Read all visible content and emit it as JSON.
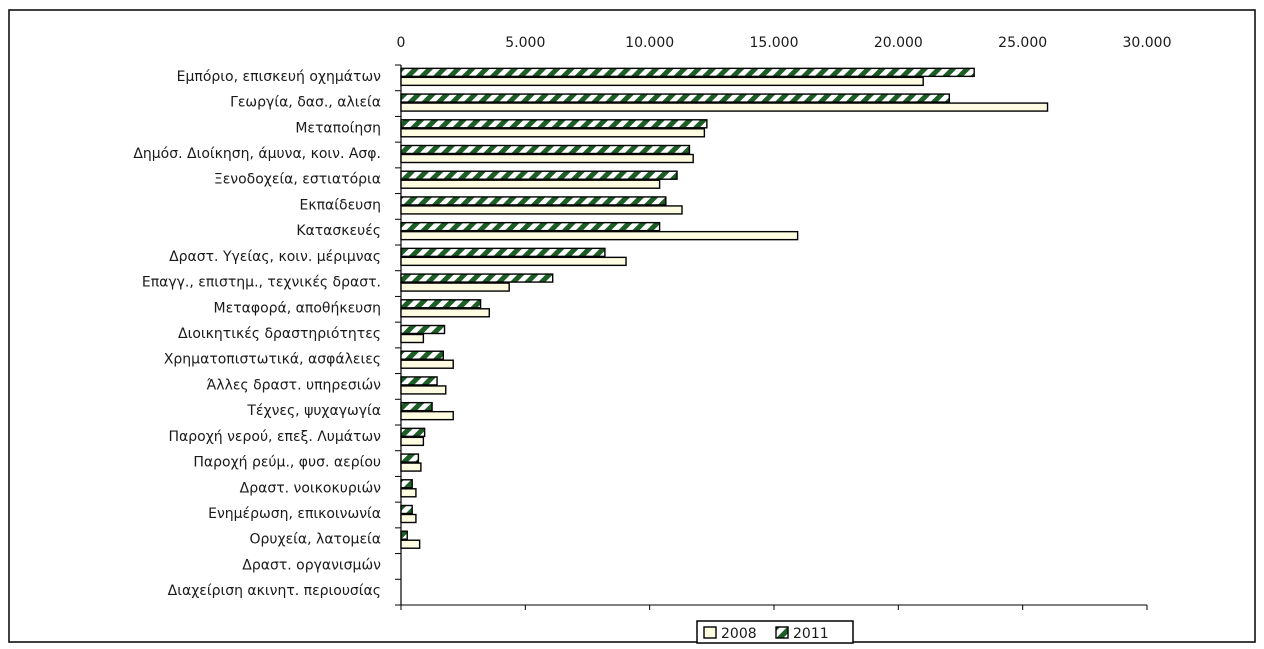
{
  "chart_data": {
    "type": "bar",
    "orientation": "horizontal",
    "title": "",
    "xlabel": "",
    "ylabel": "",
    "xlim": [
      0,
      30000
    ],
    "x_ticks": [
      0,
      5000,
      10000,
      15000,
      20000,
      25000,
      30000
    ],
    "x_tick_labels": [
      "0",
      "5.000",
      "10.000",
      "15.000",
      "20.000",
      "25.000",
      "30.000"
    ],
    "x_axis_position": "top",
    "grid": false,
    "legend_position": "bottom-center",
    "categories": [
      "Εμπόριο, επισκευή οχημάτων",
      "Γεωργία, δασ., αλιεία",
      "Μεταποίηση",
      "Δημόσ. Διοίκηση, άμυνα, κοιν. Ασφ.",
      "Ξενοδοχεία, εστιατόρια",
      "Εκπαίδευση",
      "Κατασκευές",
      "Δραστ. Υγείας, κοιν. μέριμνας",
      "Επαγγ., επιστημ., τεχνικές δραστ.",
      "Μεταφορά, αποθήκευση",
      "Διοικητικές δραστηριότητες",
      "Χρηματοπιστωτικά, ασφάλειες",
      "Άλλες δραστ. υπηρεσιών",
      "Τέχνες, ψυχαγωγία",
      "Παροχή νερού, επεξ. Λυμάτων",
      "Παροχή ρεύμ., φυσ. αερίου",
      "Δραστ. νοικοκυριών",
      "Ενημέρωση, επικοινωνία",
      "Ορυχεία, λατομεία",
      "Δραστ. οργανισμών",
      "Διαχείριση ακινητ. περιουσίας"
    ],
    "series": [
      {
        "name": "2008",
        "color": "#fdfbe0",
        "pattern": "solid",
        "values": [
          21000,
          26000,
          12200,
          11750,
          10400,
          11300,
          15950,
          9050,
          4350,
          3550,
          900,
          2100,
          1800,
          2100,
          900,
          800,
          600,
          600,
          750,
          0,
          0
        ]
      },
      {
        "name": "2011",
        "color": "#1d5e26",
        "pattern": "diagonal-stripes",
        "values": [
          23050,
          22050,
          12300,
          11600,
          11100,
          10650,
          10400,
          8200,
          6100,
          3200,
          1750,
          1700,
          1450,
          1250,
          950,
          700,
          450,
          450,
          250,
          0,
          0
        ]
      }
    ]
  }
}
